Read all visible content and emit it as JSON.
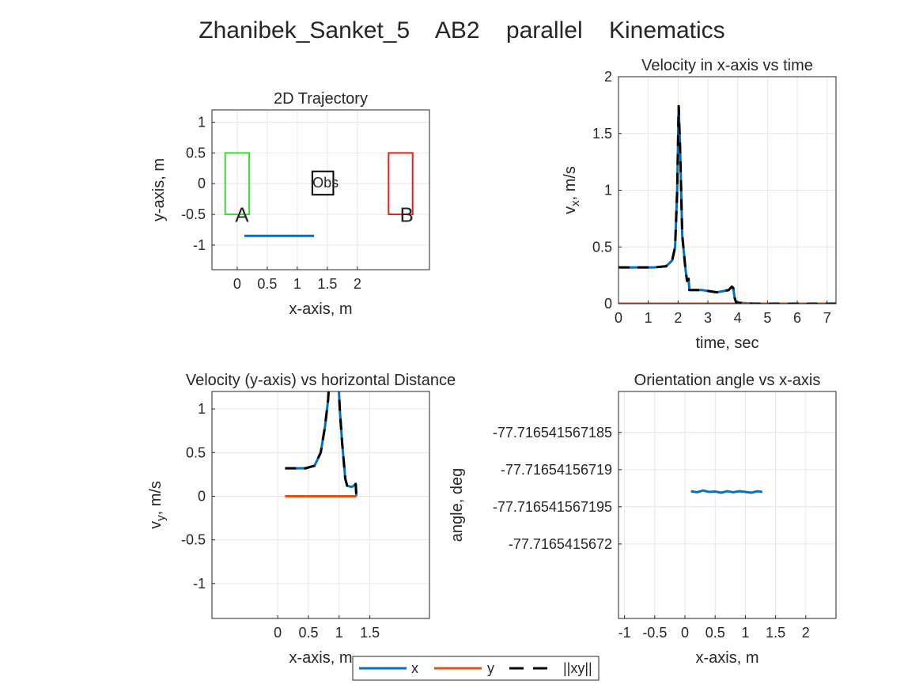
{
  "figure_title": "Zhanibek_Sanket_5    AB2    parallel    Kinematics",
  "colors": {
    "x": "#0072BD",
    "y": "#D95319",
    "xy": "#000000",
    "regionA": "#33DD33",
    "regionB": "#DD2222",
    "obs": "#000000",
    "grid": "#e6e6e6"
  },
  "legend": {
    "x": "x",
    "y": "y",
    "xy": "||xy||"
  },
  "chart_data": [
    {
      "id": "traj",
      "type": "line",
      "title": "2D Trajectory",
      "xlabel": "x-axis, m",
      "ylabel": "y-axis, m",
      "xlim": [
        -0.42,
        3.2
      ],
      "ylim": [
        -1.4,
        1.2
      ],
      "xticks": [
        0,
        0.5,
        1,
        1.5,
        2
      ],
      "xticklabels": [
        "0",
        "0.5",
        "1",
        "1.5",
        "2"
      ],
      "yticks": [
        1,
        0.5,
        0,
        -0.5,
        -1
      ],
      "yticklabels": [
        "1",
        "0.5",
        "0",
        "-0.5",
        "-1"
      ],
      "grid": true,
      "series": [
        {
          "key": "x",
          "x": [
            0.12,
            1.28
          ],
          "y": [
            -0.85,
            -0.85
          ]
        }
      ],
      "rects": [
        {
          "key": "regionA",
          "x": [
            -0.2,
            0.2
          ],
          "y": [
            -0.5,
            0.5
          ]
        },
        {
          "key": "regionB",
          "x": [
            2.52,
            2.92
          ],
          "y": [
            -0.5,
            0.5
          ]
        },
        {
          "key": "obs",
          "x": [
            1.25,
            1.6
          ],
          "y": [
            -0.18,
            0.2
          ]
        }
      ],
      "annotations": [
        {
          "text": "A",
          "x": 0.08,
          "y": -0.62,
          "size": 26
        },
        {
          "text": "B",
          "x": 2.82,
          "y": -0.62,
          "size": 26
        },
        {
          "text": "Obs",
          "x": 1.47,
          "y": -0.06,
          "size": 18
        }
      ]
    },
    {
      "id": "vx",
      "type": "line",
      "title": "Velocity in x-axis vs time",
      "xlabel": "time, sec",
      "ylabel": "v_x, m/s",
      "xlim": [
        0,
        7.3
      ],
      "ylim": [
        0,
        2
      ],
      "xticks": [
        0,
        1,
        2,
        3,
        4,
        5,
        6,
        7
      ],
      "xticklabels": [
        "0",
        "1",
        "2",
        "3",
        "4",
        "5",
        "6",
        "7"
      ],
      "yticks": [
        2,
        1.5,
        1,
        0.5,
        0
      ],
      "yticklabels": [
        "2",
        "1.5",
        "1",
        "0.5",
        "0"
      ],
      "grid": true,
      "series": [
        {
          "key": "x",
          "x": [
            0,
            1.2,
            1.6,
            1.8,
            1.9,
            1.97,
            2.02,
            2.07,
            2.14,
            2.25,
            2.3,
            2.35,
            2.38,
            2.45,
            2.8,
            3.3,
            3.7,
            3.8,
            3.85,
            3.9,
            3.95,
            4.5,
            7.3
          ],
          "y": [
            0.32,
            0.32,
            0.33,
            0.38,
            0.5,
            1.0,
            1.74,
            1.35,
            0.6,
            0.3,
            0.2,
            0.22,
            0.12,
            0.12,
            0.12,
            0.1,
            0.12,
            0.15,
            0.14,
            0.05,
            0.01,
            0.0,
            0.0
          ]
        },
        {
          "key": "y",
          "x": [
            0,
            7.3
          ],
          "y": [
            0,
            0
          ]
        },
        {
          "key": "xy",
          "x": [
            0,
            1.2,
            1.6,
            1.8,
            1.9,
            1.97,
            2.02,
            2.07,
            2.14,
            2.25,
            2.3,
            2.35,
            2.38,
            2.45,
            2.8,
            3.3,
            3.7,
            3.8,
            3.85,
            3.9,
            3.95,
            4.5,
            7.3
          ],
          "y": [
            0.32,
            0.32,
            0.33,
            0.38,
            0.5,
            1.0,
            1.74,
            1.35,
            0.6,
            0.3,
            0.2,
            0.22,
            0.12,
            0.12,
            0.12,
            0.1,
            0.12,
            0.15,
            0.14,
            0.05,
            0.01,
            0.0,
            0.0
          ]
        }
      ]
    },
    {
      "id": "vy",
      "type": "line",
      "title": "Velocity (y-axis) vs horizontal Distance",
      "xlabel": "x-axis, m",
      "ylabel": "v_y, m/s",
      "xlim": [
        -1.07,
        2.47
      ],
      "ylim": [
        -1.4,
        1.2
      ],
      "xticks": [
        0,
        0.5,
        1,
        1.5
      ],
      "xticklabels": [
        "0",
        "0.5",
        "1",
        "1.5"
      ],
      "yticks": [
        1,
        0.5,
        0,
        -0.5,
        -1
      ],
      "yticklabels": [
        "1",
        "0.5",
        "0",
        "-0.5",
        "-1"
      ],
      "grid": true,
      "series": [
        {
          "key": "x",
          "x": [
            0.12,
            0.45,
            0.6,
            0.7,
            0.77,
            0.82,
            0.86,
            0.95,
            0.99,
            1.01,
            1.05,
            1.1,
            1.13,
            1.18,
            1.22,
            1.25,
            1.27,
            1.28
          ],
          "y": [
            0.32,
            0.32,
            0.35,
            0.5,
            0.8,
            1.1,
            1.6,
            1.6,
            1.3,
            1.0,
            0.6,
            0.2,
            0.12,
            0.11,
            0.11,
            0.13,
            0.14,
            0.0
          ]
        },
        {
          "key": "y",
          "x": [
            0.12,
            1.28
          ],
          "y": [
            0,
            0
          ]
        },
        {
          "key": "xy",
          "x": [
            0.12,
            0.45,
            0.6,
            0.7,
            0.77,
            0.82,
            0.86,
            0.95,
            0.99,
            1.01,
            1.05,
            1.1,
            1.13,
            1.18,
            1.22,
            1.25,
            1.27,
            1.28
          ],
          "y": [
            0.32,
            0.32,
            0.35,
            0.5,
            0.8,
            1.1,
            1.6,
            1.6,
            1.3,
            1.0,
            0.6,
            0.2,
            0.12,
            0.11,
            0.11,
            0.13,
            0.14,
            0.0
          ]
        }
      ]
    },
    {
      "id": "angle",
      "type": "line",
      "title": "Orientation angle vs x-axis",
      "xlabel": "x-axis, m",
      "ylabel": "angle, deg",
      "xlim": [
        -1.1,
        2.5
      ],
      "ylim": [
        -77.71654156721,
        -77.7165415671795
      ],
      "xticks": [
        -1,
        -0.5,
        0,
        0.5,
        1,
        1.5,
        2
      ],
      "xticklabels": [
        "-1",
        "-0.5",
        "0",
        "0.5",
        "1",
        "1.5",
        "2"
      ],
      "yticks": [
        -77.716541567185,
        -77.71654156719,
        -77.716541567195,
        -77.7165415672
      ],
      "yticklabels": [
        "-77.716541567185",
        "-77.71654156719",
        "-77.716541567195",
        "-77.7165415672"
      ],
      "grid": true,
      "series": [
        {
          "key": "x",
          "x": [
            0.1,
            0.2,
            0.3,
            0.4,
            0.5,
            0.6,
            0.7,
            0.8,
            0.9,
            1.0,
            1.1,
            1.2,
            1.28
          ],
          "y": [
            -77.7165415671929,
            -77.71654156719305,
            -77.7165415671928,
            -77.716541567193,
            -77.71654156719295,
            -77.7165415671931,
            -77.7165415671929,
            -77.71654156719305,
            -77.7165415671929,
            -77.716541567193,
            -77.7165415671931,
            -77.7165415671929,
            -77.716541567193
          ]
        }
      ]
    }
  ]
}
